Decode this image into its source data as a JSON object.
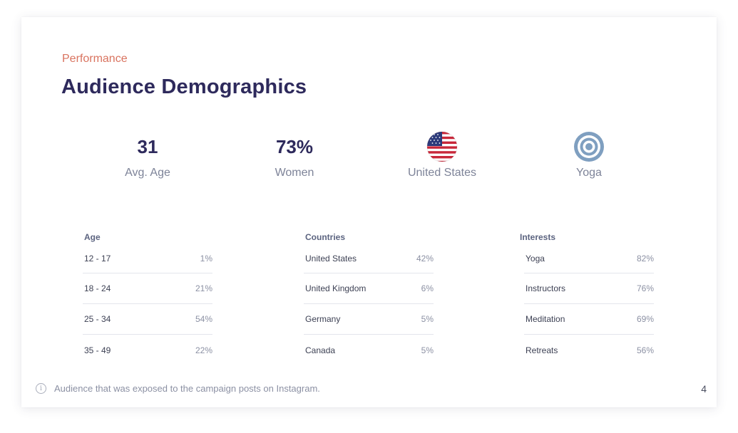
{
  "header": {
    "eyebrow": "Performance",
    "title": "Audience Demographics"
  },
  "kpis": [
    {
      "value": "31",
      "label": "Avg. Age"
    },
    {
      "value": "73%",
      "label": "Women"
    },
    {
      "icon": "us-flag-icon",
      "label": "United States"
    },
    {
      "icon": "target-icon",
      "label": "Yoga"
    }
  ],
  "tables": {
    "age": {
      "heading": "Age",
      "rows": [
        {
          "label": "12 - 17",
          "value": "1%"
        },
        {
          "label": "18 - 24",
          "value": "21%"
        },
        {
          "label": "25 - 34",
          "value": "54%"
        },
        {
          "label": "35 - 49",
          "value": "22%"
        }
      ]
    },
    "countries": {
      "heading": "Countries",
      "rows": [
        {
          "label": "United States",
          "value": "42%"
        },
        {
          "label": "United Kingdom",
          "value": "6%"
        },
        {
          "label": "Germany",
          "value": "5%"
        },
        {
          "label": "Canada",
          "value": "5%"
        }
      ]
    },
    "interests": {
      "heading": "Interests",
      "rows": [
        {
          "label": "Yoga",
          "value": "82%"
        },
        {
          "label": "Instructors",
          "value": "76%"
        },
        {
          "label": "Meditation",
          "value": "69%"
        },
        {
          "label": "Retreats",
          "value": "56%"
        }
      ]
    }
  },
  "footer": {
    "icon": "info-icon",
    "note": "Audience that was exposed to the campaign posts on Instagram.",
    "page_number": "4"
  },
  "colors": {
    "accent": "#d9735f",
    "title": "#2e2a5c",
    "muted": "#7d8398",
    "target": "#7f9fc0"
  }
}
